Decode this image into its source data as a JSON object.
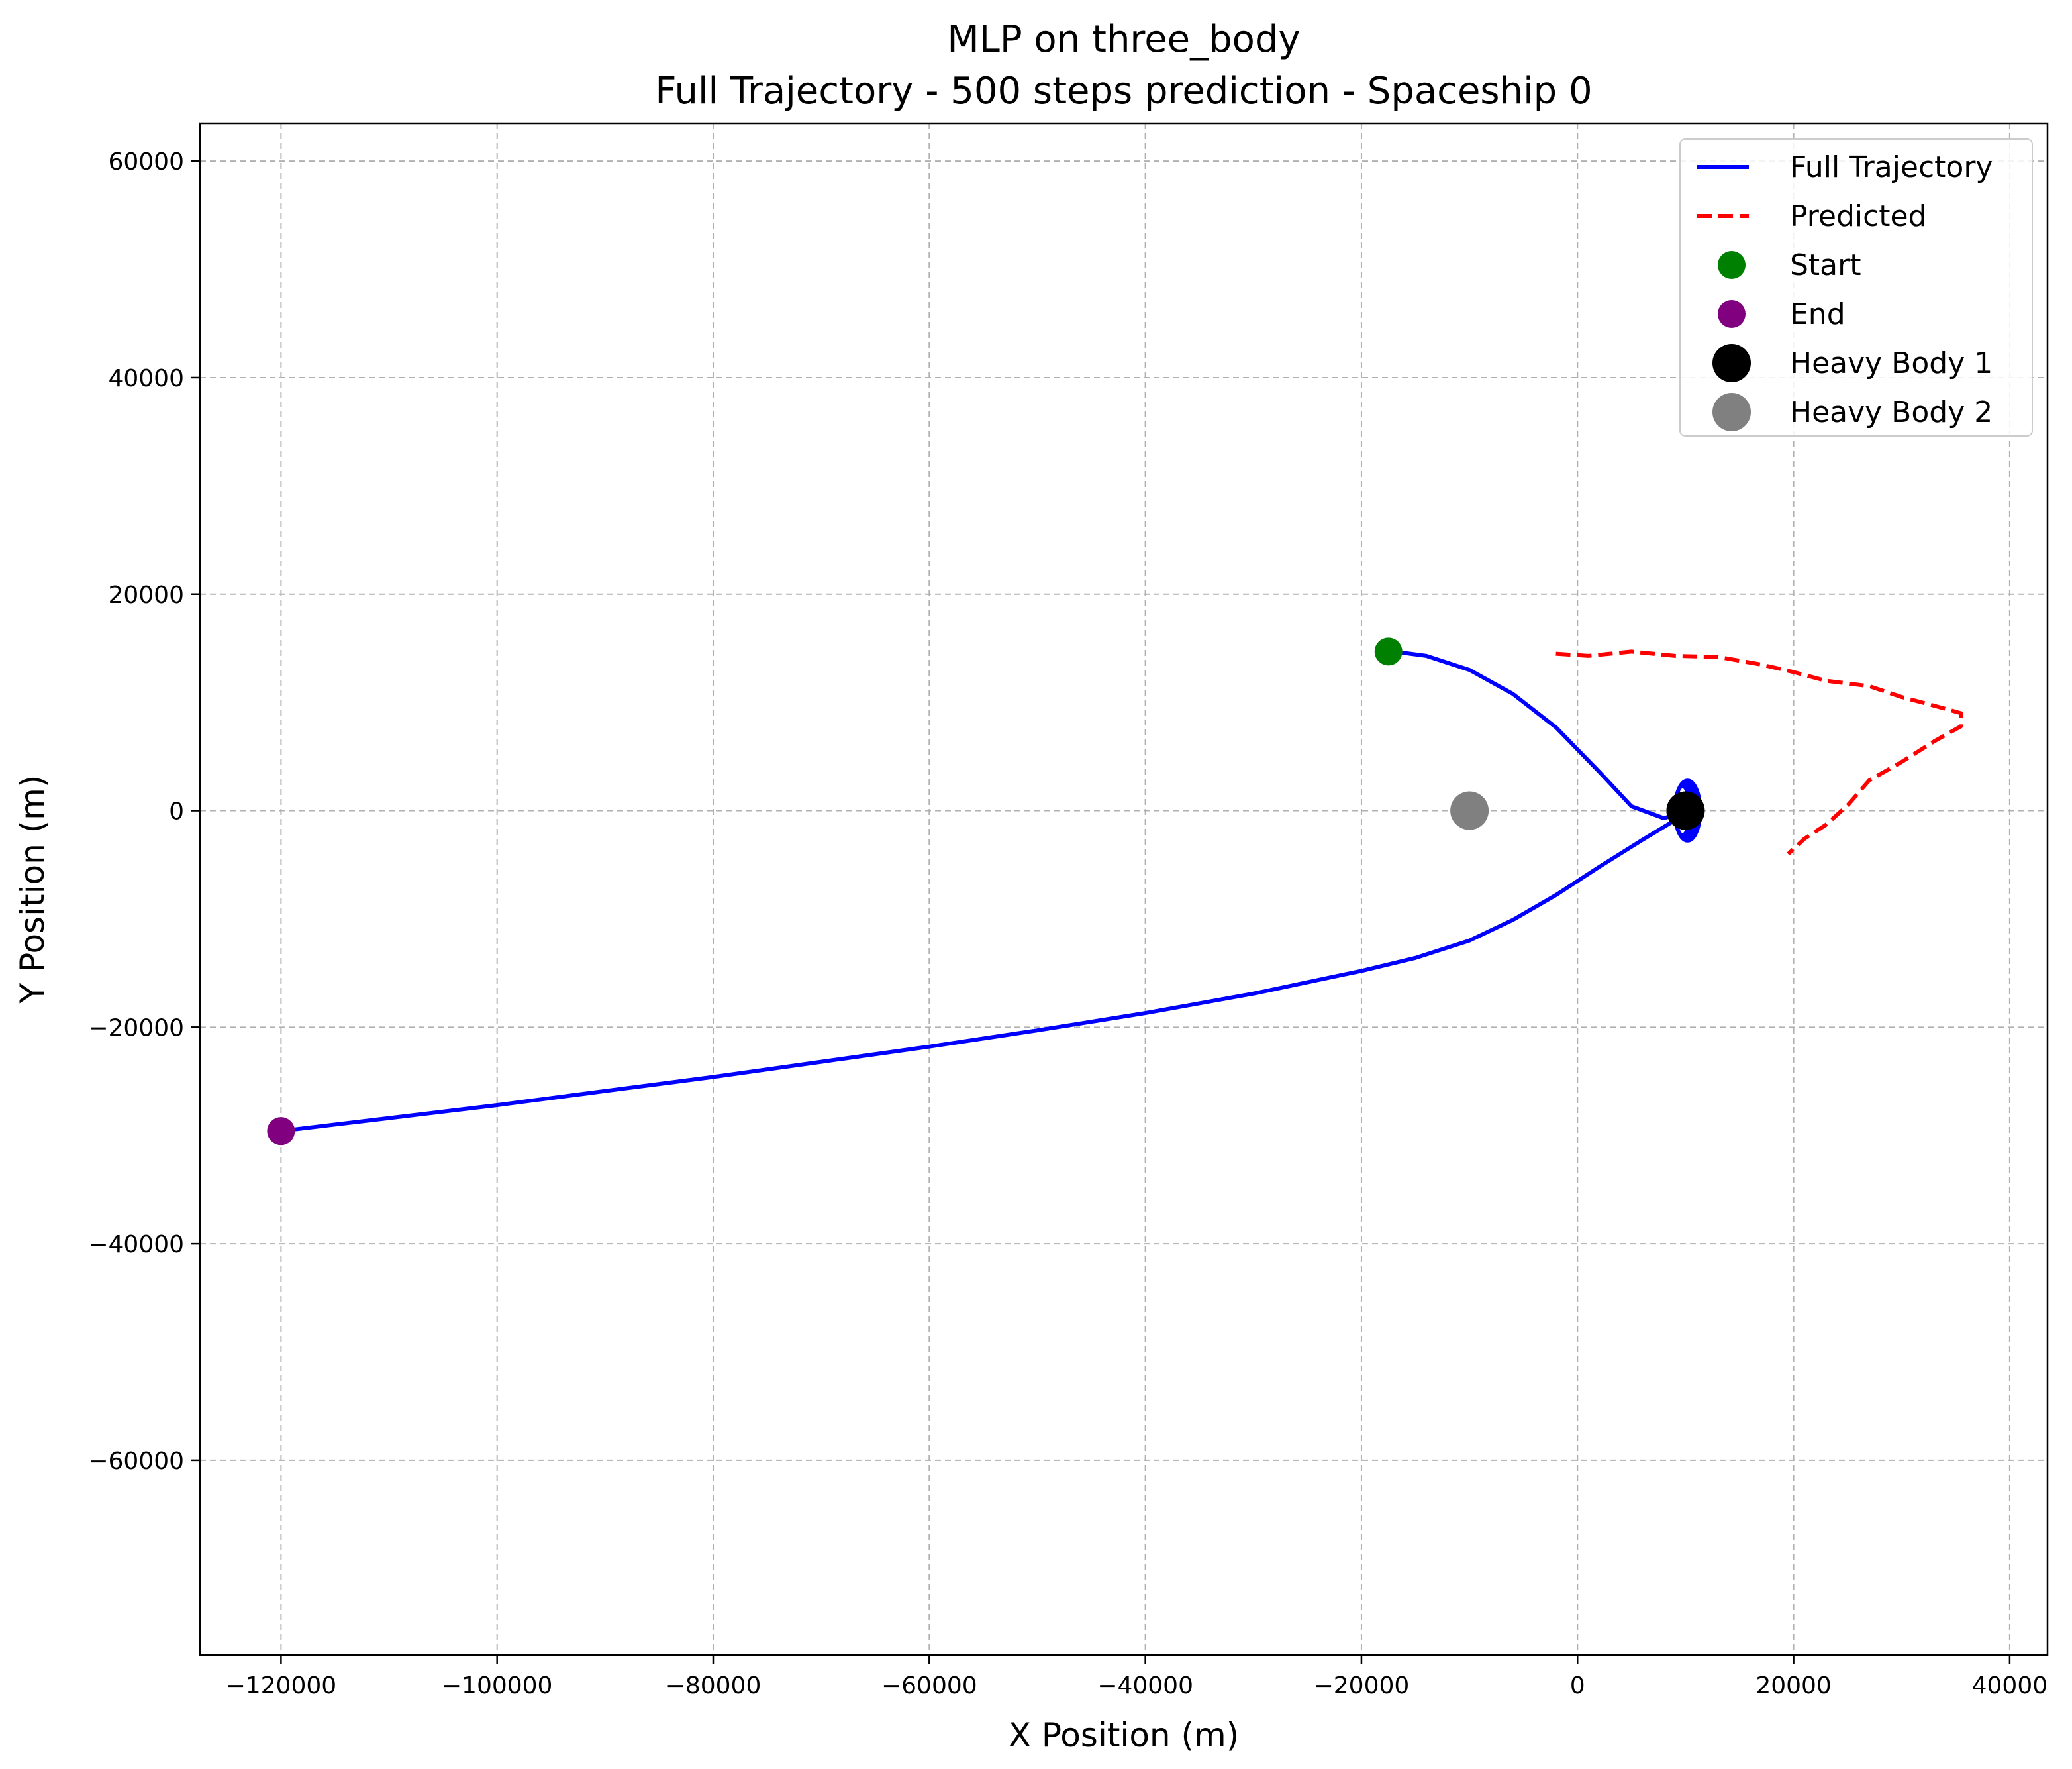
{
  "chart_data": {
    "type": "line",
    "title": "MLP on three_body",
    "subtitle": "Full Trajectory - 500 steps prediction - Spaceship 0",
    "xlabel": "X Position (m)",
    "ylabel": "Y Position (m)",
    "xlim": [
      -127500,
      43500
    ],
    "ylim": [
      -78000,
      63500
    ],
    "xticks": [
      -120000,
      -100000,
      -80000,
      -60000,
      -40000,
      -20000,
      0,
      20000,
      40000
    ],
    "yticks": [
      -60000,
      -40000,
      -20000,
      0,
      20000,
      40000,
      60000
    ],
    "xtick_labels": [
      "−120000",
      "−100000",
      "−80000",
      "−60000",
      "−40000",
      "−20000",
      "0",
      "20000",
      "40000"
    ],
    "ytick_labels": [
      "−60000",
      "−40000",
      "−20000",
      "0",
      "20000",
      "40000",
      "60000"
    ],
    "grid": true,
    "legend_position": "top-right",
    "series": [
      {
        "name": "Full Trajectory",
        "color": "#0000ff",
        "style": "solid",
        "x": [
          -17000,
          -14000,
          -10000,
          -6000,
          -2000,
          2000,
          5000,
          8000,
          9500,
          10000,
          9000,
          6000,
          2000,
          -2000,
          -6000,
          -10000,
          -15000,
          -20000,
          -30000,
          -40000,
          -50000,
          -60000,
          -70000,
          -80000,
          -90000,
          -100000,
          -110000,
          -120000
        ],
        "y": [
          14700,
          14300,
          13000,
          10800,
          7700,
          3600,
          400,
          -700,
          -200,
          0,
          -900,
          -2700,
          -5200,
          -7800,
          -10100,
          -12000,
          -13600,
          -14800,
          -16900,
          -18700,
          -20300,
          -21800,
          -23200,
          -24600,
          -25900,
          -27200,
          -28400,
          -29600
        ]
      },
      {
        "name": "Predicted",
        "color": "#ff0000",
        "style": "dashed",
        "x": [
          -2000,
          1000,
          5000,
          9000,
          13000,
          17000,
          20000,
          23000,
          27000,
          30000,
          33000,
          35500,
          35500,
          33000,
          30000,
          27000,
          25000,
          23000,
          21000,
          19500
        ],
        "y": [
          14500,
          14300,
          14700,
          14300,
          14200,
          13500,
          12800,
          12000,
          11500,
          10500,
          9700,
          9000,
          7800,
          6400,
          4500,
          2800,
          500,
          -1300,
          -2600,
          -4000
        ]
      }
    ],
    "points": [
      {
        "name": "Start",
        "x": -17500,
        "y": 14700,
        "color": "#008000",
        "size": "medium"
      },
      {
        "name": "End",
        "x": -120000,
        "y": -29600,
        "color": "#800080",
        "size": "medium"
      },
      {
        "name": "Heavy Body 1",
        "x": 10000,
        "y": 0,
        "color": "#000000",
        "size": "large"
      },
      {
        "name": "Heavy Body 2",
        "x": -10000,
        "y": 0,
        "color": "#808080",
        "size": "large"
      }
    ],
    "orbit_loop": {
      "center_x": 10000,
      "center_y": 0,
      "radius_x": 1200,
      "radius_y": 2800,
      "color": "#0000ff"
    }
  }
}
